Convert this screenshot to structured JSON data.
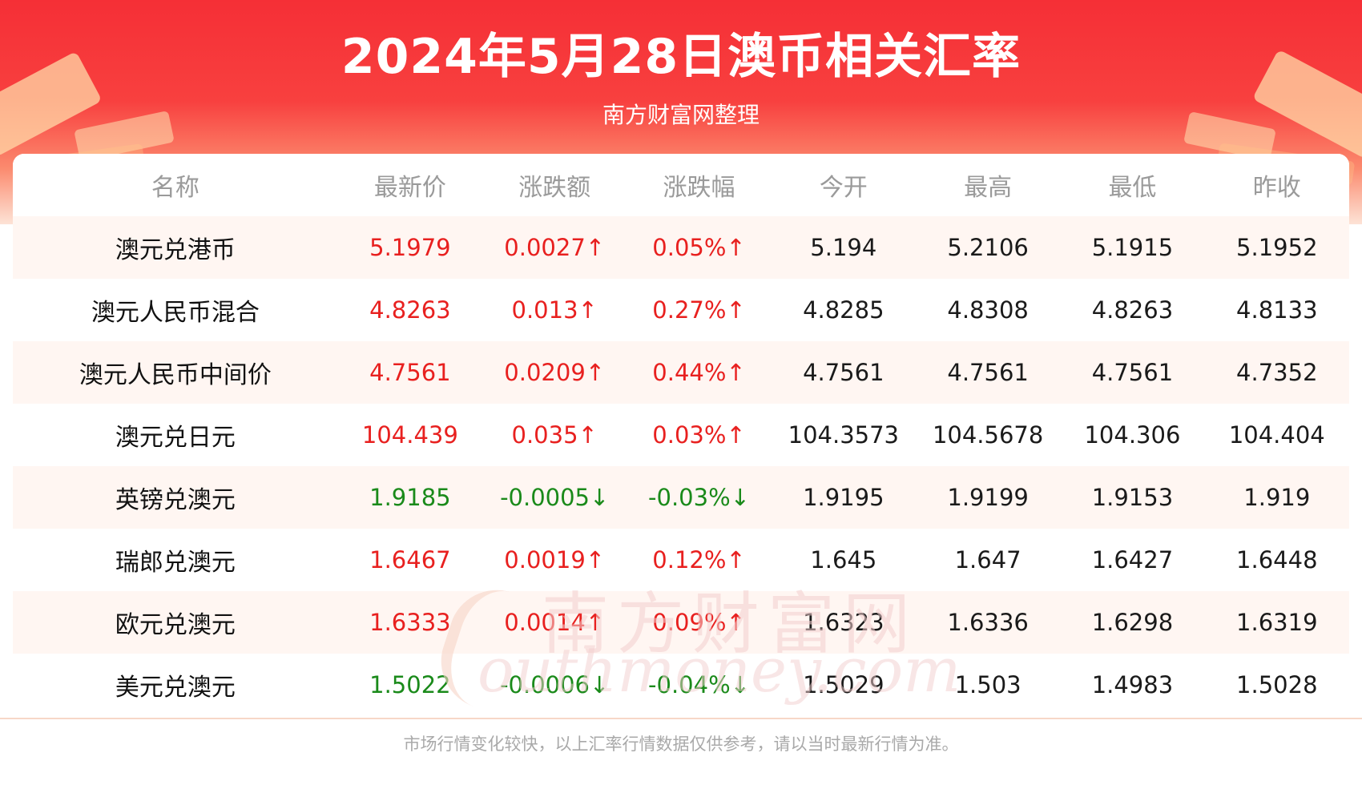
{
  "header": {
    "title": "2024年5月28日澳币相关汇率",
    "subtitle": "南方财富网整理"
  },
  "watermark": {
    "cn": "南方财富网",
    "en": "outhmoney.com"
  },
  "table": {
    "columns": [
      "名称",
      "最新价",
      "涨跌额",
      "涨跌幅",
      "今开",
      "最高",
      "最低",
      "昨收"
    ],
    "rows": [
      {
        "name": "澳元兑港币",
        "latest": "5.1979",
        "change": "0.0027↑",
        "pct": "0.05%↑",
        "open": "5.194",
        "high": "5.2106",
        "low": "5.1915",
        "prev_close": "5.1952",
        "direction": "up"
      },
      {
        "name": "澳元人民币混合",
        "latest": "4.8263",
        "change": "0.013↑",
        "pct": "0.27%↑",
        "open": "4.8285",
        "high": "4.8308",
        "low": "4.8263",
        "prev_close": "4.8133",
        "direction": "up"
      },
      {
        "name": "澳元人民币中间价",
        "latest": "4.7561",
        "change": "0.0209↑",
        "pct": "0.44%↑",
        "open": "4.7561",
        "high": "4.7561",
        "low": "4.7561",
        "prev_close": "4.7352",
        "direction": "up"
      },
      {
        "name": "澳元兑日元",
        "latest": "104.439",
        "change": "0.035↑",
        "pct": "0.03%↑",
        "open": "104.3573",
        "high": "104.5678",
        "low": "104.306",
        "prev_close": "104.404",
        "direction": "up"
      },
      {
        "name": "英镑兑澳元",
        "latest": "1.9185",
        "change": "-0.0005↓",
        "pct": "-0.03%↓",
        "open": "1.9195",
        "high": "1.9199",
        "low": "1.9153",
        "prev_close": "1.919",
        "direction": "down"
      },
      {
        "name": "瑞郎兑澳元",
        "latest": "1.6467",
        "change": "0.0019↑",
        "pct": "0.12%↑",
        "open": "1.645",
        "high": "1.647",
        "low": "1.6427",
        "prev_close": "1.6448",
        "direction": "up"
      },
      {
        "name": "欧元兑澳元",
        "latest": "1.6333",
        "change": "0.0014↑",
        "pct": "0.09%↑",
        "open": "1.6323",
        "high": "1.6336",
        "low": "1.6298",
        "prev_close": "1.6319",
        "direction": "up"
      },
      {
        "name": "美元兑澳元",
        "latest": "1.5022",
        "change": "-0.0006↓",
        "pct": "-0.04%↓",
        "open": "1.5029",
        "high": "1.503",
        "low": "1.4983",
        "prev_close": "1.5028",
        "direction": "down"
      }
    ]
  },
  "footer": {
    "note": "市场行情变化较快，以上汇率行情数据仅供参考，请以当时最新行情为准。"
  },
  "colors": {
    "up": "#e8201f",
    "down": "#1a8a1a",
    "header_red": "#f52f36"
  }
}
